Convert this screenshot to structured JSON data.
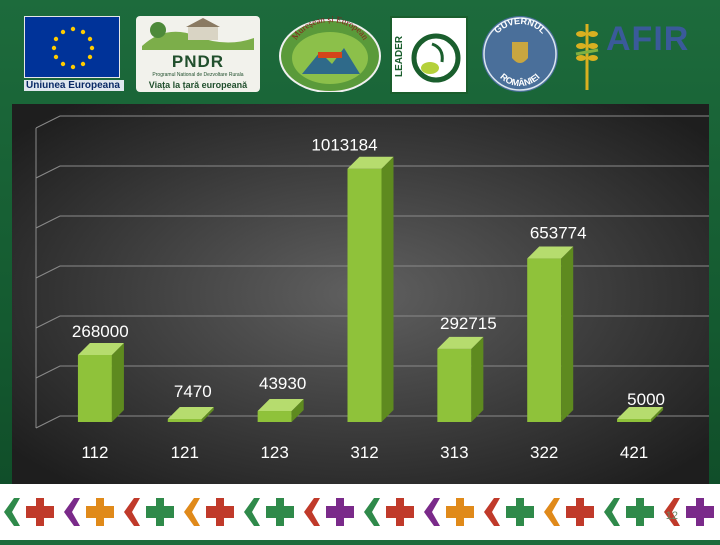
{
  "logos": {
    "eu": {
      "name": "eu-flag-logo",
      "caption": "Uniunea Europeana"
    },
    "pndr": {
      "title": "PNDR",
      "subtitle": "Programul National de Dezvoltare Rurala",
      "tagline": "Viața la țară europeană"
    },
    "gal": {
      "arc_text": "Mureșean și European"
    },
    "leader": {
      "text": "LEADER"
    },
    "gov": {
      "top_text": "GUVERNUL",
      "bottom_text": "ROMÂNIEI"
    },
    "afir": {
      "text": "AFIR"
    }
  },
  "colors": {
    "bar_front": "#8fc23a",
    "bar_side": "#5e8a1f",
    "bar_top": "#b6dc6e",
    "label": "#ffffff",
    "plot_bg_center": "#606060",
    "plot_bg_edge": "#1e1e1e"
  },
  "chart_data": {
    "type": "bar",
    "style": "3d-column",
    "categories": [
      "112",
      "121",
      "123",
      "312",
      "313",
      "322",
      "421"
    ],
    "values": [
      268000,
      7470,
      43930,
      1013184,
      292715,
      653774,
      5000
    ],
    "data_labels": [
      "268000",
      "7470",
      "43930",
      "1013184",
      "292715",
      "653774",
      "5000"
    ],
    "title": "",
    "xlabel": "",
    "ylabel": "",
    "ylim": [
      0,
      1200000
    ],
    "grid": true,
    "legend": "none"
  },
  "footer": {
    "page_number": "12"
  }
}
